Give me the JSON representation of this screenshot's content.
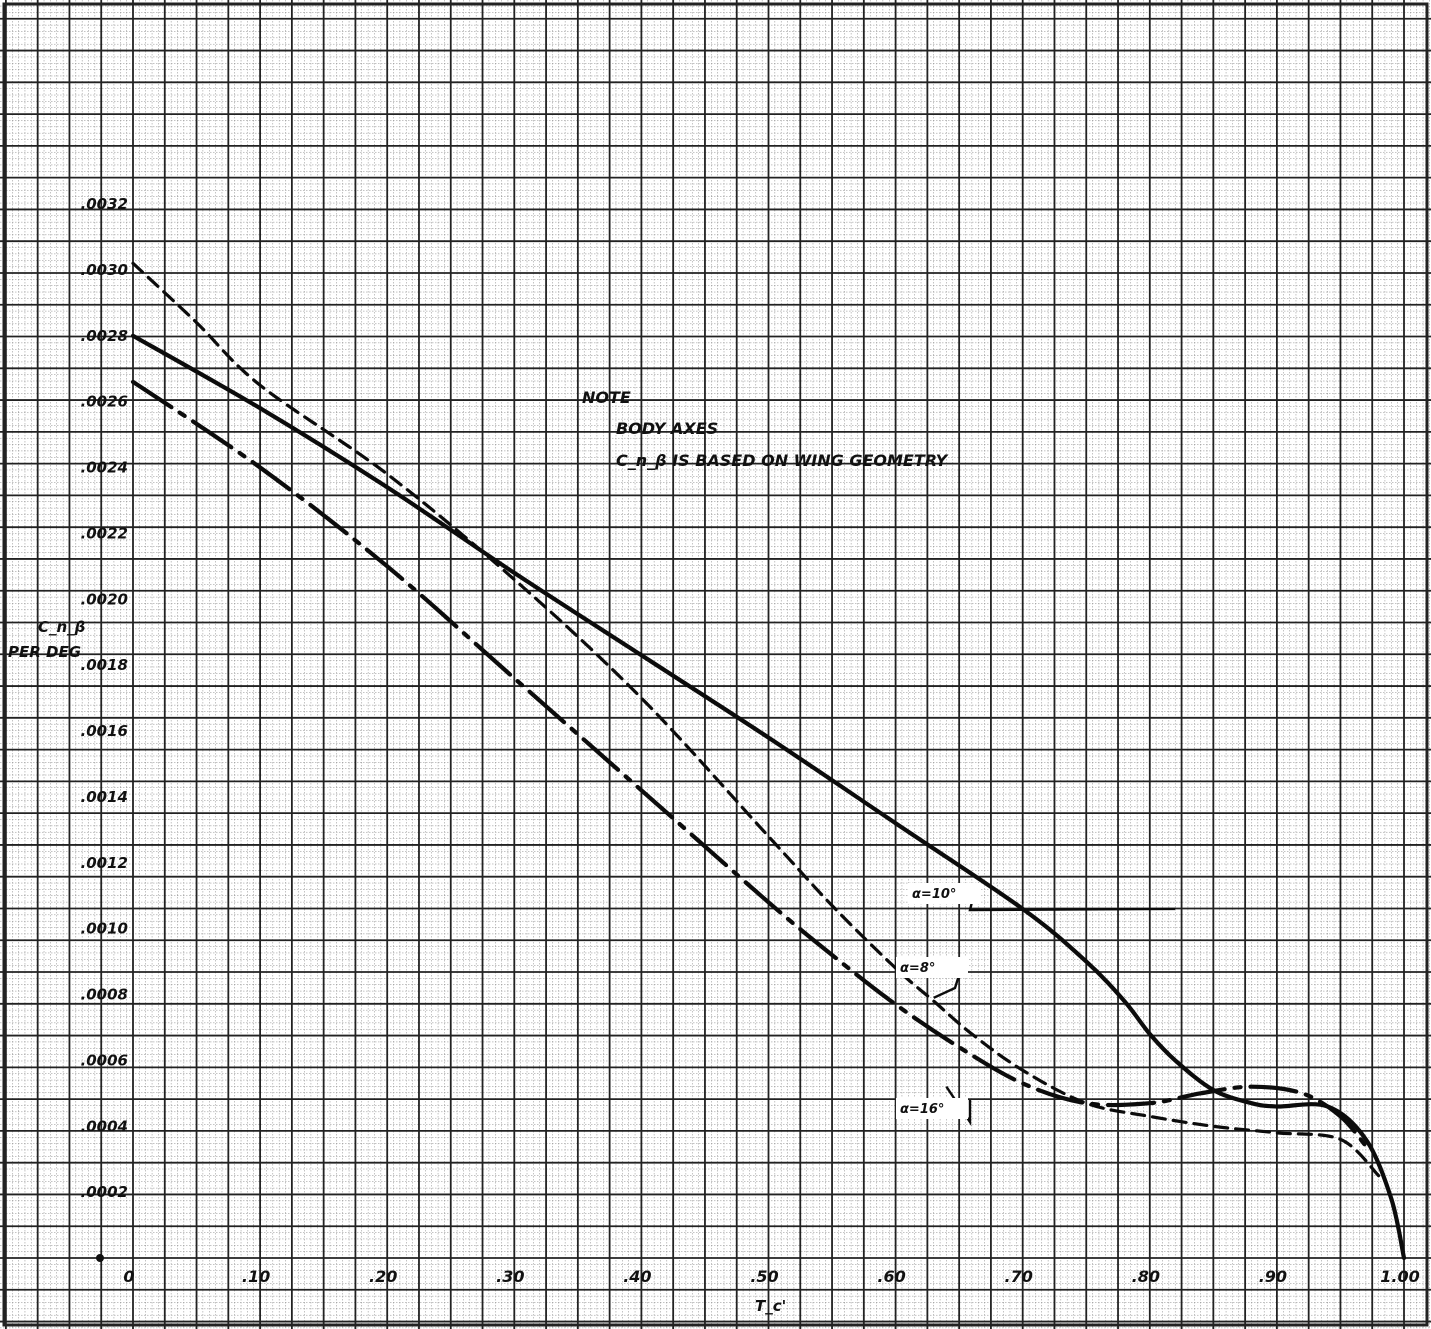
{
  "chart_data": {
    "type": "line",
    "title": "",
    "xlabel": "T_c'",
    "ylabel_main": "C_n_β",
    "ylabel_sub": "PER DEG",
    "xlim": [
      0,
      1.0
    ],
    "ylim": [
      0,
      0.0032
    ],
    "x_ticks": [
      {
        "value": 0.0,
        "label": "0"
      },
      {
        "value": 0.1,
        "label": ".10"
      },
      {
        "value": 0.2,
        "label": ".20"
      },
      {
        "value": 0.3,
        "label": ".30"
      },
      {
        "value": 0.4,
        "label": ".40"
      },
      {
        "value": 0.5,
        "label": ".50"
      },
      {
        "value": 0.6,
        "label": ".60"
      },
      {
        "value": 0.7,
        "label": ".70"
      },
      {
        "value": 0.8,
        "label": ".80"
      },
      {
        "value": 0.9,
        "label": ".90"
      },
      {
        "value": 1.0,
        "label": "1.00"
      }
    ],
    "y_ticks": [
      {
        "value": 0.0,
        "label": "0"
      },
      {
        "value": 0.0002,
        "label": ".0002"
      },
      {
        "value": 0.0004,
        "label": ".0004"
      },
      {
        "value": 0.0006,
        "label": ".0006"
      },
      {
        "value": 0.0008,
        "label": ".0008"
      },
      {
        "value": 0.001,
        "label": ".0010"
      },
      {
        "value": 0.0012,
        "label": ".0012"
      },
      {
        "value": 0.0014,
        "label": ".0014"
      },
      {
        "value": 0.0016,
        "label": ".0016"
      },
      {
        "value": 0.0018,
        "label": ".0018"
      },
      {
        "value": 0.002,
        "label": ".0020"
      },
      {
        "value": 0.0022,
        "label": ".0022"
      },
      {
        "value": 0.0024,
        "label": ".0024"
      },
      {
        "value": 0.0026,
        "label": ".0026"
      },
      {
        "value": 0.0028,
        "label": ".0028"
      },
      {
        "value": 0.003,
        "label": ".0030"
      },
      {
        "value": 0.0032,
        "label": ".0032"
      }
    ],
    "grid": true,
    "series": [
      {
        "name": "α=10°",
        "style": "solid",
        "x": [
          0,
          0.1,
          0.2,
          0.3,
          0.4,
          0.5,
          0.6,
          0.7,
          0.75,
          0.78,
          0.8,
          0.82,
          0.85,
          0.88,
          0.9,
          0.94,
          0.97,
          0.99,
          1.0
        ],
        "y": [
          0.0028,
          0.00258,
          0.00234,
          0.00208,
          0.00183,
          0.00158,
          0.00132,
          0.00106,
          0.0009,
          0.00078,
          0.00068,
          0.0006,
          0.00051,
          0.00047,
          0.00046,
          0.00046,
          0.00036,
          0.00018,
          0.0
        ]
      },
      {
        "name": "α=8°",
        "style": "dashed",
        "x": [
          0,
          0.05,
          0.1,
          0.2,
          0.3,
          0.4,
          0.5,
          0.55,
          0.6,
          0.63,
          0.66,
          0.7,
          0.75,
          0.8,
          0.85,
          0.9,
          0.95,
          0.98
        ],
        "y": [
          0.00302,
          0.00284,
          0.00265,
          0.00238,
          0.00206,
          0.0017,
          0.00128,
          0.00107,
          0.00088,
          0.00078,
          0.00068,
          0.00057,
          0.00047,
          0.00043,
          0.0004,
          0.00038,
          0.00036,
          0.00025
        ]
      },
      {
        "name": "α=16°",
        "style": "dashdot",
        "x": [
          0,
          0.1,
          0.2,
          0.3,
          0.4,
          0.5,
          0.55,
          0.6,
          0.65,
          0.7,
          0.75,
          0.8,
          0.84,
          0.88,
          0.92,
          0.95,
          0.97
        ],
        "y": [
          0.00266,
          0.0024,
          0.0021,
          0.00176,
          0.00142,
          0.00108,
          0.00092,
          0.00077,
          0.00064,
          0.00053,
          0.00047,
          0.00047,
          0.0005,
          0.00052,
          0.0005,
          0.00043,
          0.00034
        ]
      }
    ],
    "annotations": [
      {
        "text": "α=10°",
        "target_series": "α=10°",
        "x": 0.82,
        "y": 0.00106
      },
      {
        "text": "α=8°",
        "target_series": "α=8°",
        "x": 0.63,
        "y": 0.00079
      },
      {
        "text": "α=16°",
        "target_series": "α=16°",
        "x": 0.64,
        "y": 0.00052
      }
    ],
    "note": {
      "title": "NOTE",
      "lines": [
        "BODY AXES",
        "C_n_β IS BASED ON WING GEOMETRY"
      ]
    }
  }
}
